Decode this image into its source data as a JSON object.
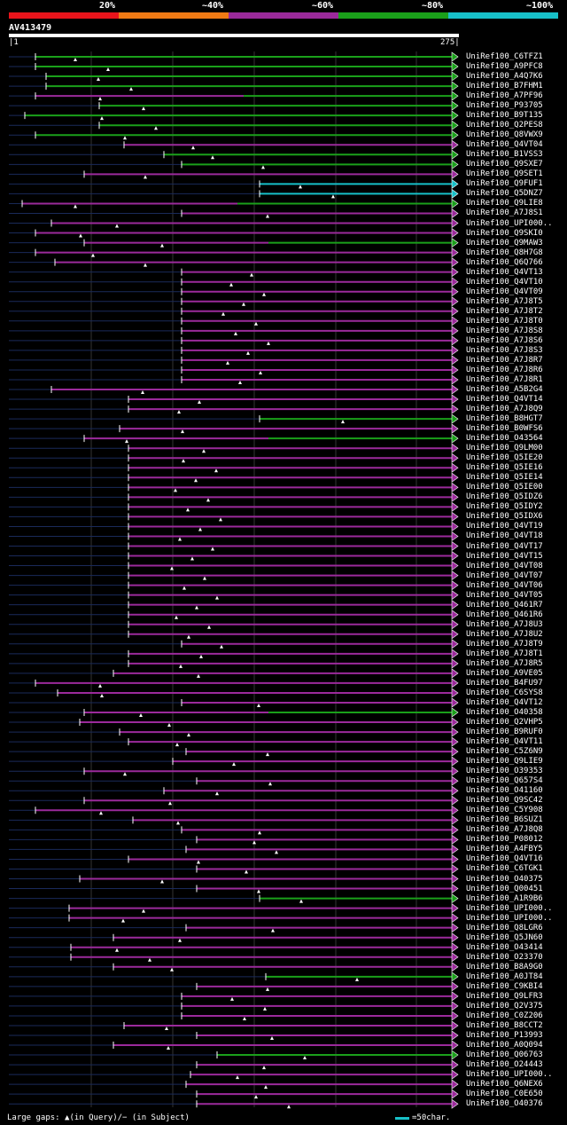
{
  "legend": {
    "labels": [
      "20%",
      "~40%",
      "~60%",
      "~80%",
      "~100%"
    ],
    "colors": [
      "#e8141b",
      "#f07a14",
      "#9b2a9b",
      "#1aa01a",
      "#17c0c8"
    ]
  },
  "query": {
    "id": "AV413479",
    "start": "1",
    "end": "275"
  },
  "footer": {
    "gaps_text": "Large gaps: ▲(in Query)/− (in Subject)",
    "scale_text": "=50char."
  },
  "hits": [
    {
      "label": "UniRef100_C6TFZ1",
      "color": "green"
    },
    {
      "label": "UniRef100_A9PFC8",
      "color": "green"
    },
    {
      "label": "UniRef100_A4Q7K6",
      "color": "green"
    },
    {
      "label": "UniRef100_B7FHM1",
      "color": "green"
    },
    {
      "label": "UniRef100_A7PF96",
      "color": "mixed"
    },
    {
      "label": "UniRef100_P93705",
      "color": "green"
    },
    {
      "label": "UniRef100_B9T135",
      "color": "green"
    },
    {
      "label": "UniRef100_Q2PES8",
      "color": "green"
    },
    {
      "label": "UniRef100_Q8VWX9",
      "color": "green"
    },
    {
      "label": "UniRef100_Q4VT04",
      "color": "purple"
    },
    {
      "label": "UniRef100_B1VSS3",
      "color": "green"
    },
    {
      "label": "UniRef100_Q9SXE7",
      "color": "green"
    },
    {
      "label": "UniRef100_Q9SET1",
      "color": "purple"
    },
    {
      "label": "UniRef100_Q9FUF1",
      "color": "cyan"
    },
    {
      "label": "UniRef100_Q5DNZ7",
      "color": "cyan"
    },
    {
      "label": "UniRef100_Q9LIE8",
      "color": "mixed"
    },
    {
      "label": "UniRef100_A7J8S1",
      "color": "purple"
    },
    {
      "label": "UniRef100_UPI000..",
      "color": "purple"
    },
    {
      "label": "UniRef100_Q9SKI0",
      "color": "purple"
    },
    {
      "label": "UniRef100_Q9MAW3",
      "color": "mixed"
    },
    {
      "label": "UniRef100_Q8H7G8",
      "color": "purple"
    },
    {
      "label": "UniRef100_Q6Q766",
      "color": "purple"
    },
    {
      "label": "UniRef100_Q4VT13",
      "color": "purple"
    },
    {
      "label": "UniRef100_Q4VT10",
      "color": "purple"
    },
    {
      "label": "UniRef100_Q4VT09",
      "color": "purple"
    },
    {
      "label": "UniRef100_A7J8T5",
      "color": "purple"
    },
    {
      "label": "UniRef100_A7J8T2",
      "color": "purple"
    },
    {
      "label": "UniRef100_A7J8T0",
      "color": "purple"
    },
    {
      "label": "UniRef100_A7J8S8",
      "color": "purple"
    },
    {
      "label": "UniRef100_A7J8S6",
      "color": "purple"
    },
    {
      "label": "UniRef100_A7J8S3",
      "color": "purple"
    },
    {
      "label": "UniRef100_A7J8R7",
      "color": "purple"
    },
    {
      "label": "UniRef100_A7J8R6",
      "color": "purple"
    },
    {
      "label": "UniRef100_A7J8R1",
      "color": "purple"
    },
    {
      "label": "UniRef100_A5B2G4",
      "color": "purple"
    },
    {
      "label": "UniRef100_Q4VT14",
      "color": "purple"
    },
    {
      "label": "UniRef100_A7J8Q9",
      "color": "purple"
    },
    {
      "label": "UniRef100_B8HGT7",
      "color": "green"
    },
    {
      "label": "UniRef100_B0WFS6",
      "color": "purple"
    },
    {
      "label": "UniRef100_O43564",
      "color": "mixed"
    },
    {
      "label": "UniRef100_Q9LM00",
      "color": "purple"
    },
    {
      "label": "UniRef100_Q5IE20",
      "color": "purple"
    },
    {
      "label": "UniRef100_Q5IE16",
      "color": "purple"
    },
    {
      "label": "UniRef100_Q5IE14",
      "color": "purple"
    },
    {
      "label": "UniRef100_Q5IE00",
      "color": "purple"
    },
    {
      "label": "UniRef100_Q5IDZ6",
      "color": "purple"
    },
    {
      "label": "UniRef100_Q5IDY2",
      "color": "purple"
    },
    {
      "label": "UniRef100_Q5IDX6",
      "color": "purple"
    },
    {
      "label": "UniRef100_Q4VT19",
      "color": "purple"
    },
    {
      "label": "UniRef100_Q4VT18",
      "color": "purple"
    },
    {
      "label": "UniRef100_Q4VT17",
      "color": "purple"
    },
    {
      "label": "UniRef100_Q4VT15",
      "color": "purple"
    },
    {
      "label": "UniRef100_Q4VT08",
      "color": "purple"
    },
    {
      "label": "UniRef100_Q4VT07",
      "color": "purple"
    },
    {
      "label": "UniRef100_Q4VT06",
      "color": "purple"
    },
    {
      "label": "UniRef100_Q4VT05",
      "color": "purple"
    },
    {
      "label": "UniRef100_Q461R7",
      "color": "purple"
    },
    {
      "label": "UniRef100_Q461R6",
      "color": "purple"
    },
    {
      "label": "UniRef100_A7J8U3",
      "color": "purple"
    },
    {
      "label": "UniRef100_A7J8U2",
      "color": "purple"
    },
    {
      "label": "UniRef100_A7J8T9",
      "color": "purple"
    },
    {
      "label": "UniRef100_A7J8T1",
      "color": "purple"
    },
    {
      "label": "UniRef100_A7J8R5",
      "color": "purple"
    },
    {
      "label": "UniRef100_A9VE05",
      "color": "purple"
    },
    {
      "label": "UniRef100_B4FU97",
      "color": "purple"
    },
    {
      "label": "UniRef100_C6SYS8",
      "color": "purple"
    },
    {
      "label": "UniRef100_Q4VT12",
      "color": "purple"
    },
    {
      "label": "UniRef100_O40358",
      "color": "mixed"
    },
    {
      "label": "UniRef100_Q2VHP5",
      "color": "purple"
    },
    {
      "label": "UniRef100_B9RUF0",
      "color": "purple"
    },
    {
      "label": "UniRef100_Q4VT11",
      "color": "purple"
    },
    {
      "label": "UniRef100_C5Z6N9",
      "color": "purple"
    },
    {
      "label": "UniRef100_Q9LIE9",
      "color": "purple"
    },
    {
      "label": "UniRef100_O39353",
      "color": "purple"
    },
    {
      "label": "UniRef100_Q657S4",
      "color": "purple"
    },
    {
      "label": "UniRef100_O41160",
      "color": "purple"
    },
    {
      "label": "UniRef100_Q9SC42",
      "color": "purple"
    },
    {
      "label": "UniRef100_C5Y908",
      "color": "purple"
    },
    {
      "label": "UniRef100_B6SUZ1",
      "color": "purple"
    },
    {
      "label": "UniRef100_A7J8Q8",
      "color": "purple"
    },
    {
      "label": "UniRef100_P08012",
      "color": "purple"
    },
    {
      "label": "UniRef100_A4FBY5",
      "color": "purple"
    },
    {
      "label": "UniRef100_Q4VT16",
      "color": "purple"
    },
    {
      "label": "UniRef100_C6TGK1",
      "color": "purple"
    },
    {
      "label": "UniRef100_O40375",
      "color": "purple"
    },
    {
      "label": "UniRef100_Q00451",
      "color": "purple"
    },
    {
      "label": "UniRef100_A1R9B6",
      "color": "green"
    },
    {
      "label": "UniRef100_UPI000..",
      "color": "purple"
    },
    {
      "label": "UniRef100_UPI000..",
      "color": "purple"
    },
    {
      "label": "UniRef100_Q8LGR6",
      "color": "purple"
    },
    {
      "label": "UniRef100_Q5JN60",
      "color": "purple"
    },
    {
      "label": "UniRef100_O43414",
      "color": "purple"
    },
    {
      "label": "UniRef100_O23370",
      "color": "purple"
    },
    {
      "label": "UniRef100_B8A9G0",
      "color": "purple"
    },
    {
      "label": "UniRef100_A0JT84",
      "color": "green"
    },
    {
      "label": "UniRef100_C9KBI4",
      "color": "purple"
    },
    {
      "label": "UniRef100_Q9LFR3",
      "color": "purple"
    },
    {
      "label": "UniRef100_Q2V375",
      "color": "purple"
    },
    {
      "label": "UniRef100_C0Z206",
      "color": "purple"
    },
    {
      "label": "UniRef100_B8CCT2",
      "color": "purple"
    },
    {
      "label": "UniRef100_P13993",
      "color": "purple"
    },
    {
      "label": "UniRef100_A0Q094",
      "color": "purple"
    },
    {
      "label": "UniRef100_Q06763",
      "color": "green"
    },
    {
      "label": "UniRef100_O24443",
      "color": "purple"
    },
    {
      "label": "UniRef100_UPI000..",
      "color": "purple"
    },
    {
      "label": "UniRef100_Q6NEX6",
      "color": "purple"
    },
    {
      "label": "UniRef100_C0E650",
      "color": "purple"
    },
    {
      "label": "UniRef100_O40376",
      "color": "purple"
    }
  ]
}
